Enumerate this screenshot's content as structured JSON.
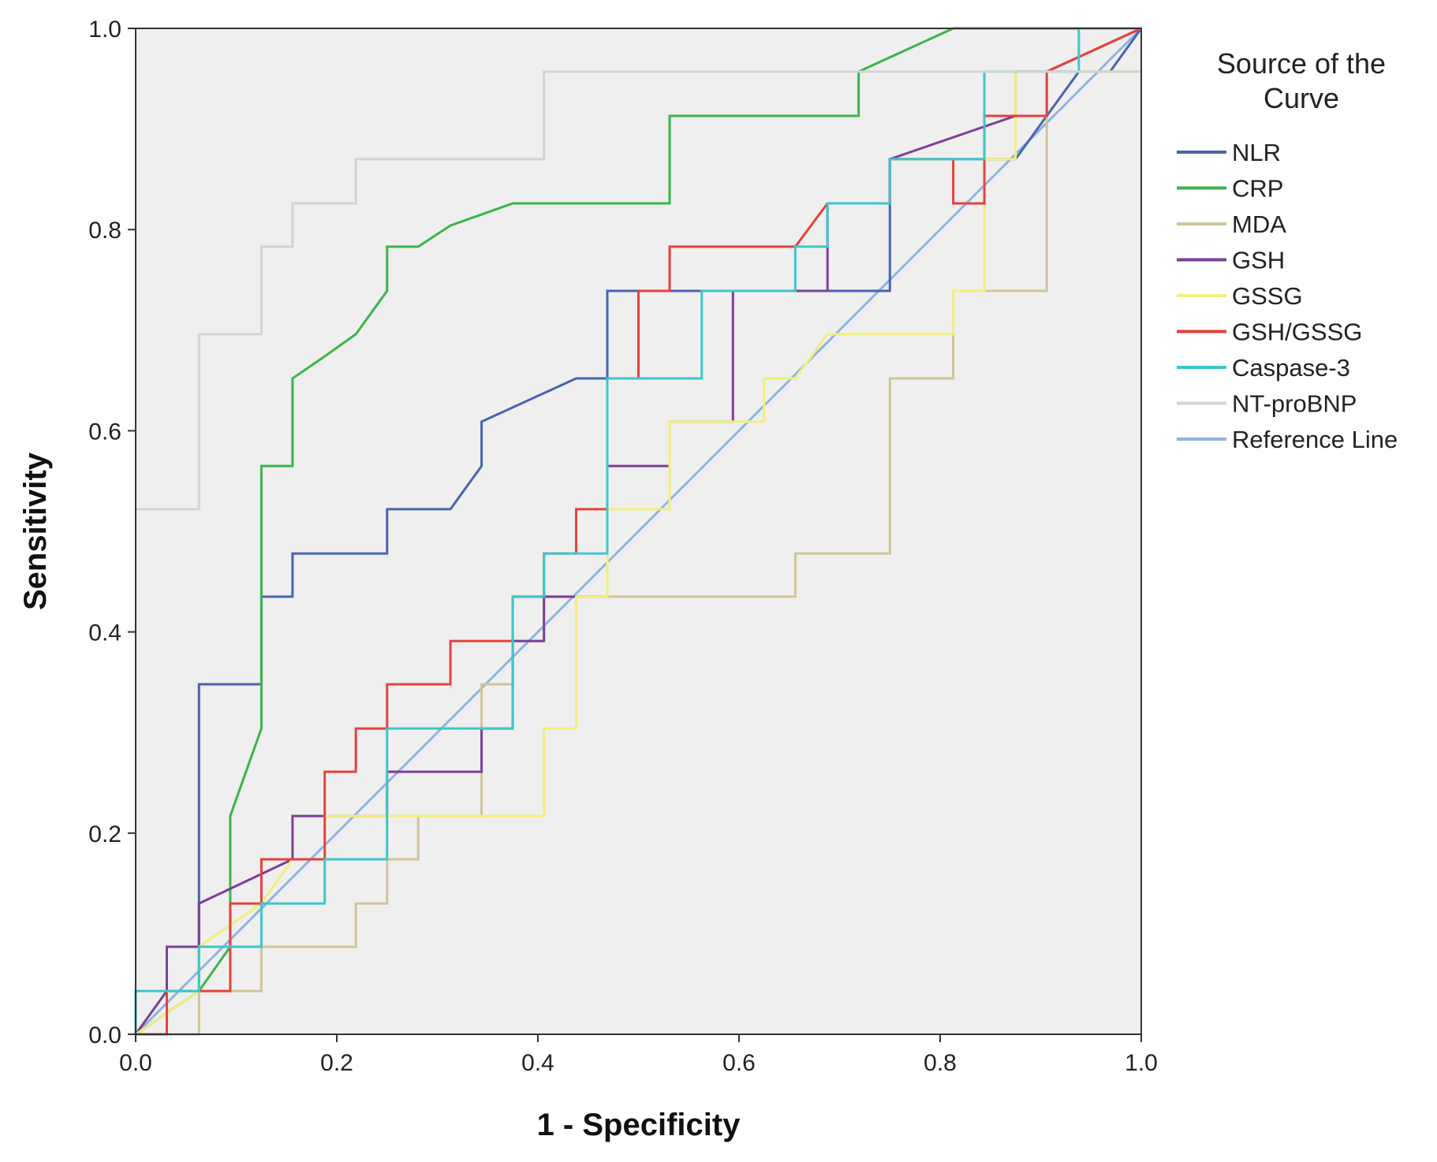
{
  "chart_data": {
    "type": "line",
    "title": "",
    "xlabel": "1 - Specificity",
    "ylabel": "Sensitivity",
    "xlim": [
      0,
      1
    ],
    "ylim": [
      0,
      1
    ],
    "x_ticks": [
      "0.0",
      "0.2",
      "0.4",
      "0.6",
      "0.8",
      "1.0"
    ],
    "y_ticks": [
      "0.0",
      "0.2",
      "0.4",
      "0.6",
      "0.8",
      "1.0"
    ],
    "grid": false,
    "background": "#efefef",
    "legend": {
      "title": "Source of the Curve",
      "placement": "right"
    },
    "series": [
      {
        "name": "NLR",
        "color": "#4a63b0",
        "x": [
          0,
          0.063,
          0.063,
          0.125,
          0.125,
          0.156,
          0.156,
          0.25,
          0.25,
          0.313,
          0.344,
          0.344,
          0.438,
          0.469,
          0.469,
          0.75,
          0.75,
          0.875,
          0.906,
          0.938,
          0.969,
          1.0
        ],
        "y": [
          0,
          0.043,
          0.348,
          0.348,
          0.435,
          0.435,
          0.478,
          0.478,
          0.522,
          0.522,
          0.565,
          0.609,
          0.652,
          0.652,
          0.739,
          0.739,
          0.87,
          0.87,
          0.913,
          0.957,
          0.957,
          1.0
        ]
      },
      {
        "name": "CRP",
        "color": "#3cb44b",
        "x": [
          0,
          0.063,
          0.094,
          0.094,
          0.125,
          0.125,
          0.156,
          0.156,
          0.188,
          0.219,
          0.25,
          0.25,
          0.281,
          0.313,
          0.375,
          0.531,
          0.531,
          0.719,
          0.719,
          0.813,
          1.0
        ],
        "y": [
          0,
          0.043,
          0.087,
          0.217,
          0.304,
          0.565,
          0.565,
          0.652,
          0.674,
          0.696,
          0.739,
          0.783,
          0.783,
          0.804,
          0.826,
          0.826,
          0.913,
          0.913,
          0.957,
          1.0,
          1.0
        ]
      },
      {
        "name": "MDA",
        "color": "#cfc39a",
        "x": [
          0,
          0.063,
          0.063,
          0.125,
          0.125,
          0.219,
          0.219,
          0.25,
          0.25,
          0.281,
          0.281,
          0.344,
          0.344,
          0.375,
          0.375,
          0.406,
          0.406,
          0.438,
          0.656,
          0.656,
          0.75,
          0.75,
          0.813,
          0.813,
          0.906,
          0.906,
          0.969,
          1.0
        ],
        "y": [
          0,
          0,
          0.043,
          0.043,
          0.087,
          0.087,
          0.13,
          0.13,
          0.174,
          0.174,
          0.217,
          0.217,
          0.348,
          0.348,
          0.391,
          0.391,
          0.435,
          0.435,
          0.435,
          0.478,
          0.478,
          0.652,
          0.652,
          0.739,
          0.739,
          0.957,
          0.957,
          0.957
        ]
      },
      {
        "name": "GSH",
        "color": "#7b3f98",
        "x": [
          0,
          0.031,
          0.031,
          0.063,
          0.063,
          0.156,
          0.156,
          0.25,
          0.25,
          0.344,
          0.344,
          0.375,
          0.375,
          0.406,
          0.406,
          0.469,
          0.469,
          0.531,
          0.531,
          0.594,
          0.594,
          0.688,
          0.688,
          0.75,
          0.75,
          0.875,
          0.875,
          0.906,
          1.0
        ],
        "y": [
          0,
          0.043,
          0.087,
          0.087,
          0.13,
          0.174,
          0.217,
          0.217,
          0.261,
          0.261,
          0.304,
          0.304,
          0.391,
          0.391,
          0.435,
          0.435,
          0.565,
          0.565,
          0.609,
          0.609,
          0.739,
          0.739,
          0.826,
          0.826,
          0.87,
          0.913,
          0.957,
          0.957,
          1.0
        ]
      },
      {
        "name": "GSSG",
        "color": "#f2ef7d",
        "x": [
          0,
          0.063,
          0.063,
          0.125,
          0.156,
          0.188,
          0.188,
          0.406,
          0.406,
          0.438,
          0.438,
          0.469,
          0.469,
          0.531,
          0.531,
          0.594,
          0.625,
          0.625,
          0.656,
          0.688,
          0.813,
          0.813,
          0.844,
          0.844,
          0.875,
          0.875,
          1.0
        ],
        "y": [
          0,
          0.043,
          0.087,
          0.13,
          0.174,
          0.174,
          0.217,
          0.217,
          0.304,
          0.304,
          0.435,
          0.435,
          0.522,
          0.522,
          0.609,
          0.609,
          0.609,
          0.652,
          0.652,
          0.696,
          0.696,
          0.739,
          0.739,
          0.87,
          0.87,
          0.957,
          0.957
        ]
      },
      {
        "name": "GSH/GSSG",
        "color": "#e8413c",
        "x": [
          0,
          0.031,
          0.031,
          0.063,
          0.094,
          0.094,
          0.125,
          0.125,
          0.188,
          0.188,
          0.219,
          0.219,
          0.25,
          0.25,
          0.313,
          0.313,
          0.375,
          0.375,
          0.406,
          0.406,
          0.438,
          0.438,
          0.469,
          0.469,
          0.5,
          0.5,
          0.531,
          0.531,
          0.656,
          0.688,
          0.75,
          0.75,
          0.813,
          0.813,
          0.844,
          0.844,
          0.906,
          0.906,
          1.0
        ],
        "y": [
          0,
          0,
          0.043,
          0.043,
          0.043,
          0.13,
          0.13,
          0.174,
          0.174,
          0.261,
          0.261,
          0.304,
          0.304,
          0.348,
          0.348,
          0.391,
          0.391,
          0.435,
          0.435,
          0.478,
          0.478,
          0.522,
          0.522,
          0.652,
          0.652,
          0.739,
          0.739,
          0.783,
          0.783,
          0.826,
          0.826,
          0.87,
          0.87,
          0.826,
          0.826,
          0.913,
          0.913,
          0.957,
          1.0
        ]
      },
      {
        "name": "Caspase-3",
        "color": "#3ec6c9",
        "x": [
          0,
          0,
          0.063,
          0.063,
          0.125,
          0.125,
          0.188,
          0.188,
          0.25,
          0.25,
          0.375,
          0.375,
          0.406,
          0.406,
          0.469,
          0.469,
          0.563,
          0.563,
          0.656,
          0.656,
          0.688,
          0.688,
          0.75,
          0.75,
          0.844,
          0.844,
          0.938,
          0.938,
          1.0
        ],
        "y": [
          0,
          0.043,
          0.043,
          0.087,
          0.087,
          0.13,
          0.13,
          0.174,
          0.174,
          0.304,
          0.304,
          0.435,
          0.435,
          0.478,
          0.478,
          0.652,
          0.652,
          0.739,
          0.739,
          0.783,
          0.783,
          0.826,
          0.826,
          0.87,
          0.87,
          0.957,
          0.957,
          1.0,
          1.0
        ]
      },
      {
        "name": "NT-proBNP",
        "color": "#d3d3d3",
        "x": [
          0,
          0.063,
          0.063,
          0.125,
          0.125,
          0.156,
          0.156,
          0.219,
          0.219,
          0.406,
          0.406,
          0.844,
          0.844,
          1.0
        ],
        "y": [
          0.522,
          0.522,
          0.696,
          0.696,
          0.783,
          0.783,
          0.826,
          0.826,
          0.87,
          0.87,
          0.957,
          0.957,
          0.957,
          0.957
        ]
      },
      {
        "name": "Reference Line",
        "color": "#8fb3e0",
        "x": [
          0,
          1
        ],
        "y": [
          0,
          1
        ]
      }
    ]
  }
}
